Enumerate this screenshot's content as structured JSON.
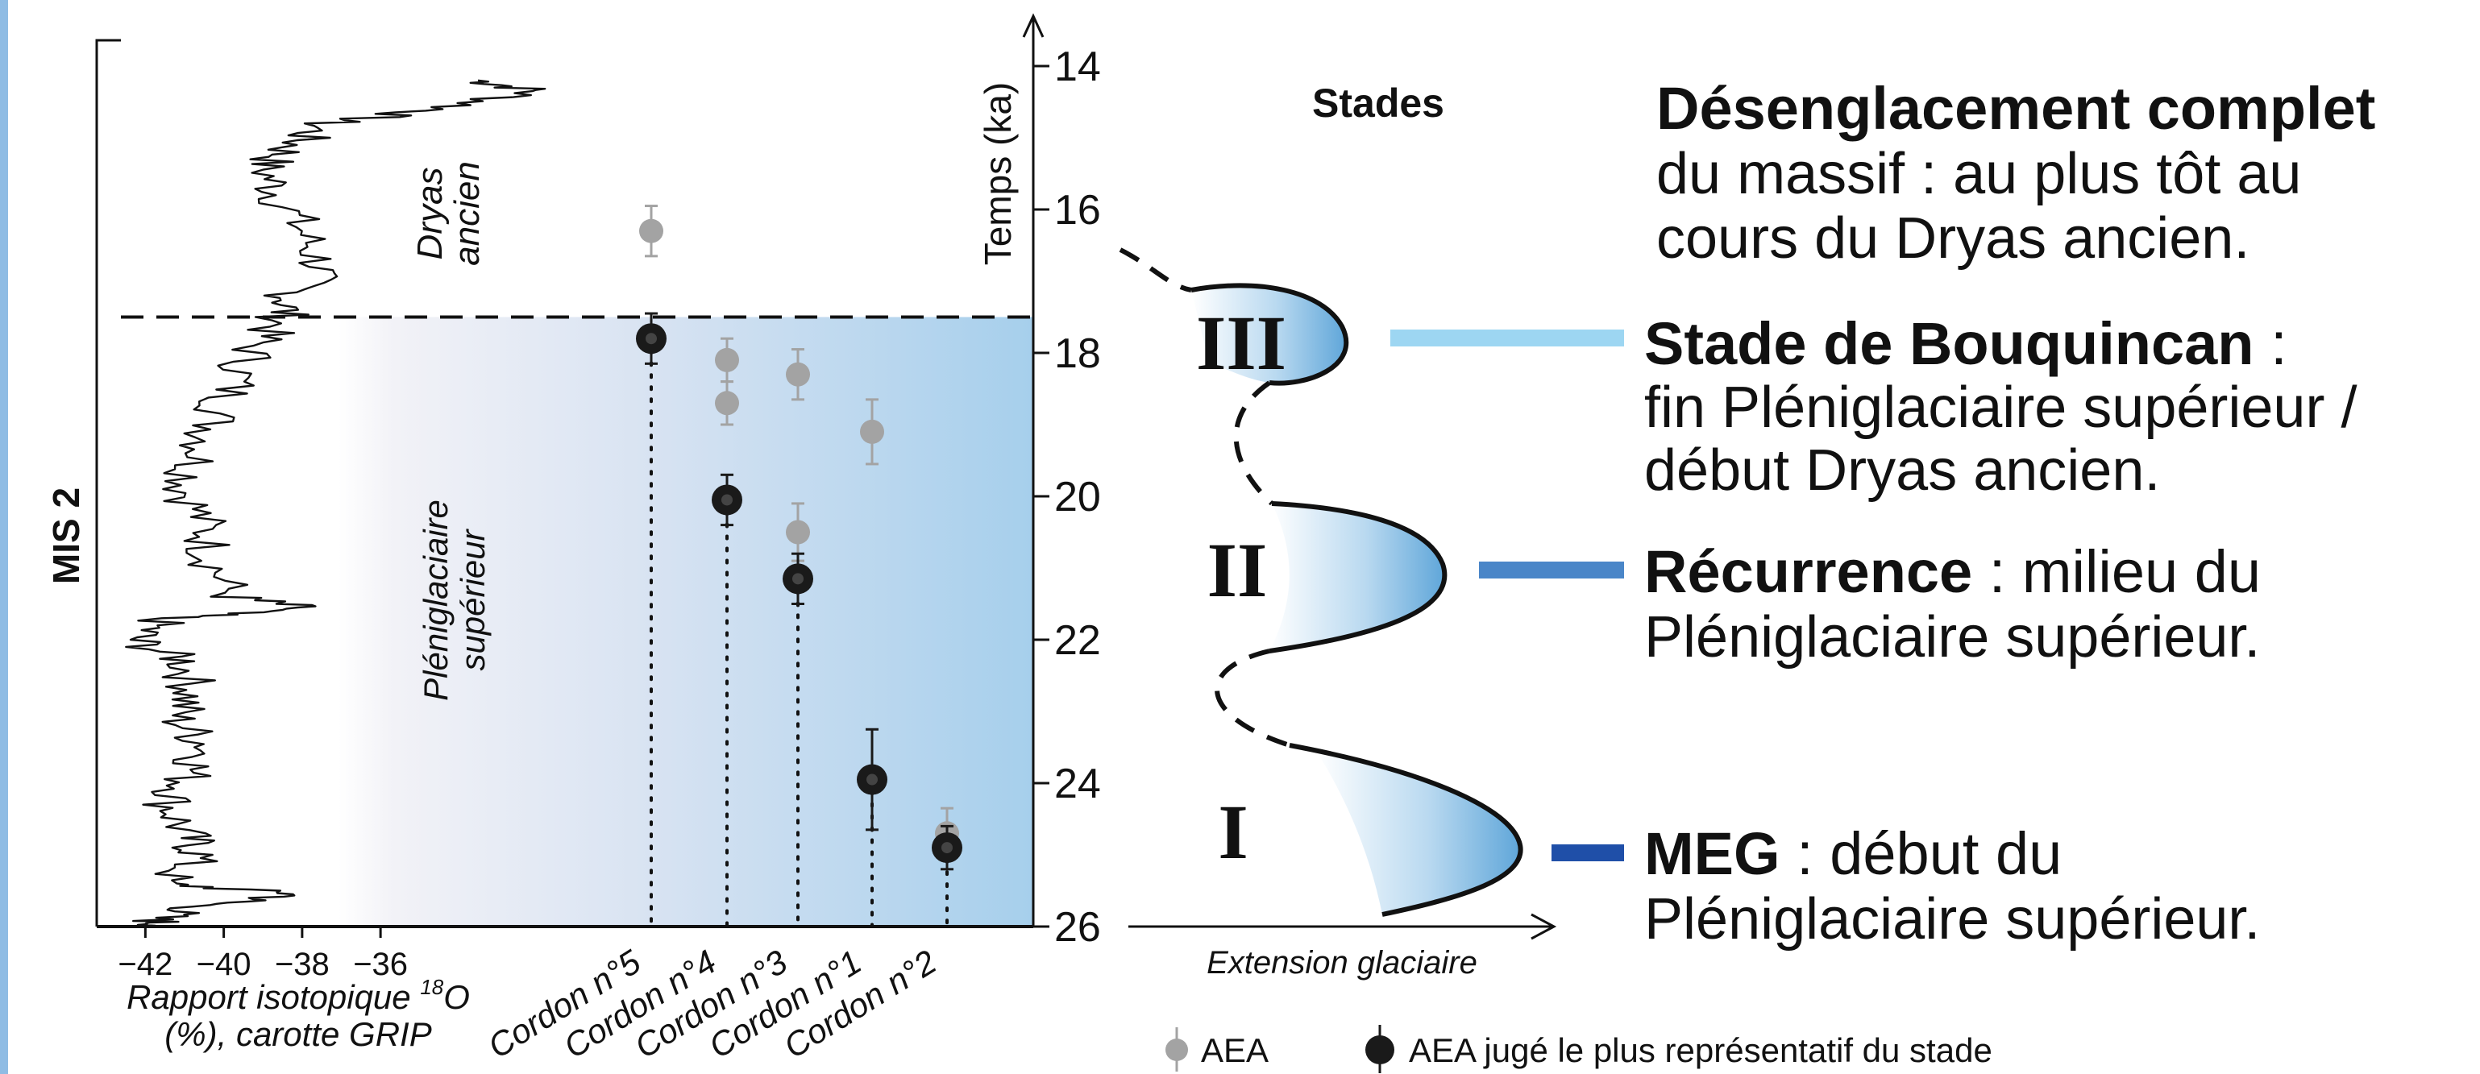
{
  "chart_data": {
    "type": "scatter",
    "y_axis": {
      "label": "Temps (ka)",
      "ticks": [
        14,
        16,
        18,
        20,
        22,
        24,
        26
      ],
      "range": [
        26,
        13.6
      ],
      "direction": "older values downward"
    },
    "isotope_curve": {
      "xlabel_line1": "Rapport isotopique ",
      "xlabel_sup": "18",
      "xlabel_line1_end": "O",
      "xlabel_line2": "(%), carotte GRIP",
      "x_ticks": [
        "−42",
        "−40",
        "−38",
        "−36"
      ],
      "x_tick_values": [
        -42,
        -40,
        -38,
        -36
      ],
      "xlim": [
        -43.2,
        -30.8
      ]
    },
    "period_labels": {
      "dryas": [
        "Dryas",
        "ancien"
      ],
      "pleni": [
        "Pléniglaciaire",
        "supérieur"
      ],
      "mis": "MIS 2"
    },
    "boundary_ka": 17.5,
    "shaded_band_ka": [
      17.5,
      26
    ],
    "categories": [
      "Cordon n°5",
      "Cordon n°4",
      "Cordon n°3",
      "Cordon n°1",
      "Cordon n°2"
    ],
    "series": [
      {
        "name": "AEA",
        "color": "#a3a3a3",
        "points": [
          {
            "cordon": "Cordon n°5",
            "age": 16.3,
            "err": 0.35
          },
          {
            "cordon": "Cordon n°4",
            "age": 18.1,
            "err": 0.3
          },
          {
            "cordon": "Cordon n°4",
            "age": 18.7,
            "err": 0.3
          },
          {
            "cordon": "Cordon n°3",
            "age": 18.3,
            "err": 0.35
          },
          {
            "cordon": "Cordon n°3",
            "age": 20.5,
            "err": 0.4
          },
          {
            "cordon": "Cordon n°1",
            "age": 19.1,
            "err": 0.45
          },
          {
            "cordon": "Cordon n°2",
            "age": 24.7,
            "err": 0.35
          }
        ]
      },
      {
        "name": "AEA jugé le plus représentatif du stade",
        "color": "#1a1a1a",
        "points": [
          {
            "cordon": "Cordon n°5",
            "age": 17.8,
            "err": 0.35
          },
          {
            "cordon": "Cordon n°4",
            "age": 20.05,
            "err": 0.35
          },
          {
            "cordon": "Cordon n°3",
            "age": 21.15,
            "err": 0.35
          },
          {
            "cordon": "Cordon n°1",
            "age": 23.95,
            "err": 0.7
          },
          {
            "cordon": "Cordon n°2",
            "age": 24.9,
            "err": 0.3
          }
        ]
      }
    ],
    "stades_title": "Stades",
    "extension_label": "Extension glaciaire",
    "stades": [
      {
        "roman": "III",
        "label_bold": "Stade de Bouquincan",
        "label_rest": " :",
        "line2": "fin Pléniglaciaire supérieur /",
        "line3": "début Dryas ancien.",
        "marker_color": "#9dd6f2"
      },
      {
        "roman": "II",
        "label_bold": "Récurrence",
        "label_rest": " : milieu du",
        "line2": "Pléniglaciaire supérieur.",
        "line3": "",
        "marker_color": "#4a86c8"
      },
      {
        "roman": "I",
        "label_bold": "MEG",
        "label_rest": " : début du",
        "line2": "Pléniglaciaire supérieur.",
        "line3": "",
        "marker_color": "#1f4fa8"
      }
    ],
    "deglaciation": {
      "bold": "Désenglacement complet",
      "line2": "du massif : au plus tôt au",
      "line3": "cours du Dryas ancien."
    },
    "legend": {
      "aea": "AEA",
      "aea_rep": "AEA jugé le plus représentatif du stade"
    },
    "colors": {
      "band_light": "#eef1f8",
      "band_blue": "#a6cfec",
      "glacier_blue": "#5fa6d9",
      "side_bar": "#8fbce4"
    }
  }
}
